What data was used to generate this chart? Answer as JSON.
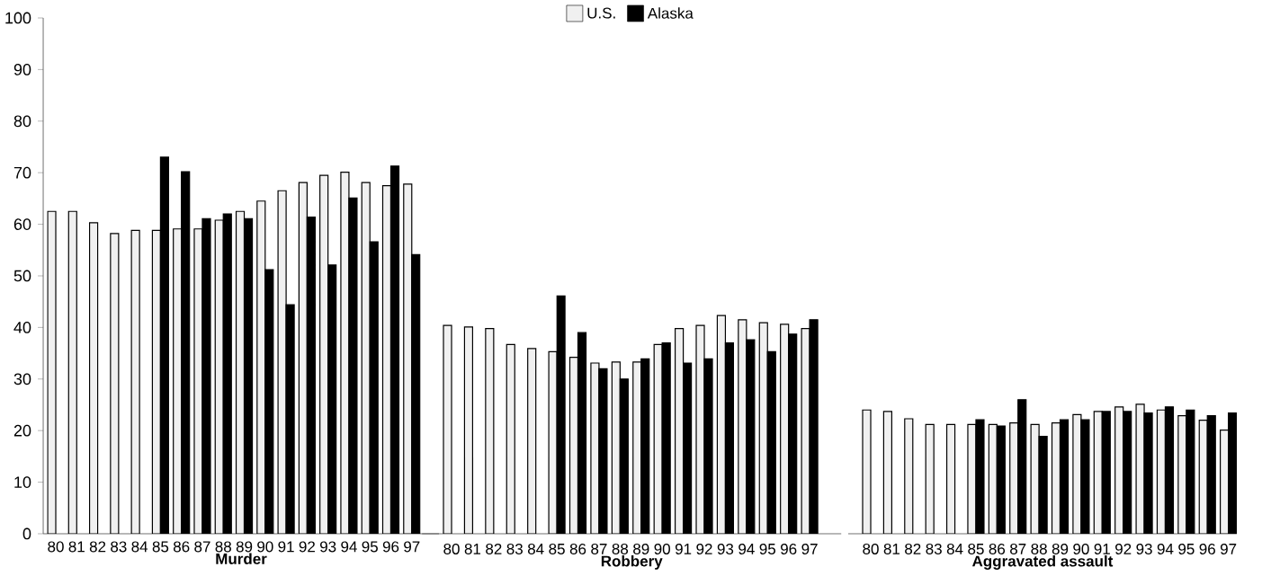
{
  "chart_data": [
    {
      "type": "bar",
      "xlabel": "Murder",
      "categories": [
        "80",
        "81",
        "82",
        "83",
        "84",
        "85",
        "86",
        "87",
        "88",
        "89",
        "90",
        "91",
        "92",
        "93",
        "94",
        "95",
        "96",
        "97"
      ],
      "ylim": [
        0,
        100
      ],
      "yticks": [
        0,
        10,
        20,
        30,
        40,
        50,
        60,
        70,
        80,
        90,
        100
      ],
      "series": [
        {
          "color": "#f0f0f0",
          "values": [
            62.5,
            62.5,
            60.3,
            58.2,
            58.8,
            58.8,
            59.1,
            59.1,
            60.8,
            62.5,
            64.5,
            66.5,
            68.1,
            69.5,
            70.1,
            68.1,
            67.5,
            67.8
          ]
        },
        {
          "color": "#000000",
          "values": [
            null,
            null,
            null,
            null,
            null,
            73,
            70.2,
            61.1,
            62,
            61.1,
            51.2,
            44.4,
            61.4,
            52.1,
            65.1,
            56.6,
            71.3,
            54.1
          ]
        }
      ]
    },
    {
      "type": "bar",
      "xlabel": "Robbery",
      "categories": [
        "80",
        "81",
        "82",
        "83",
        "84",
        "85",
        "86",
        "87",
        "88",
        "89",
        "90",
        "91",
        "92",
        "93",
        "94",
        "95",
        "96",
        "97"
      ],
      "ylim": [
        0,
        100
      ],
      "tick_labels": "x",
      "legend": "top",
      "series": [
        {
          "name": "U.S.",
          "color": "#f0f0f0",
          "values": [
            40.4,
            40.1,
            39.8,
            36.7,
            35.9,
            35.3,
            34.2,
            33.1,
            33.3,
            33.3,
            36.7,
            39.8,
            40.4,
            42.3,
            41.5,
            40.9,
            40.6,
            39.8
          ]
        },
        {
          "name": "Alaska",
          "color": "#000000",
          "values": [
            null,
            null,
            null,
            null,
            null,
            46.1,
            39,
            32,
            30,
            33.9,
            37,
            33.1,
            33.9,
            37,
            37.6,
            35.3,
            38.7,
            41.5
          ]
        }
      ]
    },
    {
      "type": "bar",
      "xlabel": "Aggravated assault",
      "categories": [
        "80",
        "81",
        "82",
        "83",
        "84",
        "85",
        "86",
        "87",
        "88",
        "89",
        "90",
        "91",
        "92",
        "93",
        "94",
        "95",
        "96",
        "97"
      ],
      "ylim": [
        0,
        100
      ],
      "tick_labels": "x",
      "series": [
        {
          "color": "#f0f0f0",
          "values": [
            24,
            23.7,
            22.3,
            21.2,
            21.2,
            21.2,
            21.2,
            21.5,
            21.2,
            21.5,
            23.1,
            23.7,
            24.6,
            25.1,
            24,
            22.9,
            22,
            20.1
          ]
        },
        {
          "color": "#000000",
          "values": [
            null,
            null,
            null,
            null,
            null,
            22.1,
            20.9,
            26,
            18.9,
            22.1,
            22.1,
            23.7,
            23.7,
            23.4,
            24.6,
            24,
            22.9,
            23.4
          ]
        }
      ]
    }
  ]
}
